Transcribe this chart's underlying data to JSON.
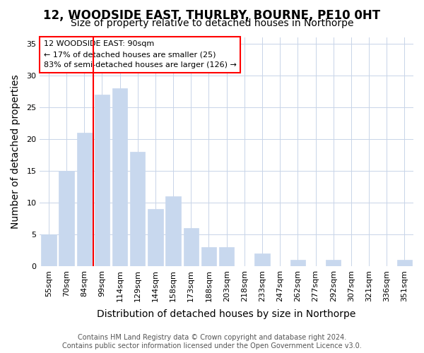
{
  "title_line1": "12, WOODSIDE EAST, THURLBY, BOURNE, PE10 0HT",
  "title_line2": "Size of property relative to detached houses in Northorpe",
  "xlabel": "Distribution of detached houses by size in Northorpe",
  "ylabel": "Number of detached properties",
  "categories": [
    "55sqm",
    "70sqm",
    "84sqm",
    "99sqm",
    "114sqm",
    "129sqm",
    "144sqm",
    "158sqm",
    "173sqm",
    "188sqm",
    "203sqm",
    "218sqm",
    "233sqm",
    "247sqm",
    "262sqm",
    "277sqm",
    "292sqm",
    "307sqm",
    "321sqm",
    "336sqm",
    "351sqm"
  ],
  "values": [
    5,
    15,
    21,
    27,
    28,
    18,
    9,
    11,
    6,
    3,
    3,
    0,
    2,
    0,
    1,
    0,
    1,
    0,
    0,
    0,
    1
  ],
  "bar_color": "#c8d8ee",
  "bar_edgecolor": "#c8d8ee",
  "grid_color": "#c8d4e8",
  "background_color": "#ffffff",
  "vline_x_index": 2.5,
  "vline_color": "red",
  "annotation_box_text": "12 WOODSIDE EAST: 90sqm\n← 17% of detached houses are smaller (25)\n83% of semi-detached houses are larger (126) →",
  "ylim": [
    0,
    36
  ],
  "yticks": [
    0,
    5,
    10,
    15,
    20,
    25,
    30,
    35
  ],
  "footer_line1": "Contains HM Land Registry data © Crown copyright and database right 2024.",
  "footer_line2": "Contains public sector information licensed under the Open Government Licence v3.0.",
  "title_fontsize": 12,
  "subtitle_fontsize": 10,
  "axis_label_fontsize": 10,
  "tick_fontsize": 8,
  "annotation_fontsize": 8,
  "footer_fontsize": 7
}
